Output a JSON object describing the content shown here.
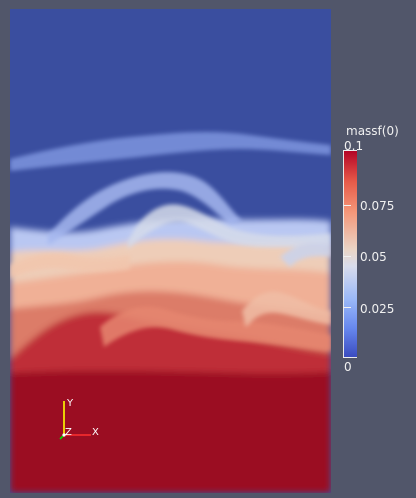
{
  "colorbar": {
    "title": "massf(0)",
    "labels": {
      "top": "0.1",
      "upper": "0.075",
      "middle": "0.05",
      "lower": "0.025",
      "bottom": "0"
    }
  },
  "axes": {
    "x_label": "X",
    "y_label": "Y",
    "z_label": "Z"
  },
  "colors": {
    "background": "#51566a",
    "field_low": "#3b4cc0",
    "field_mid": "#dddddd",
    "field_high": "#b40426"
  }
}
